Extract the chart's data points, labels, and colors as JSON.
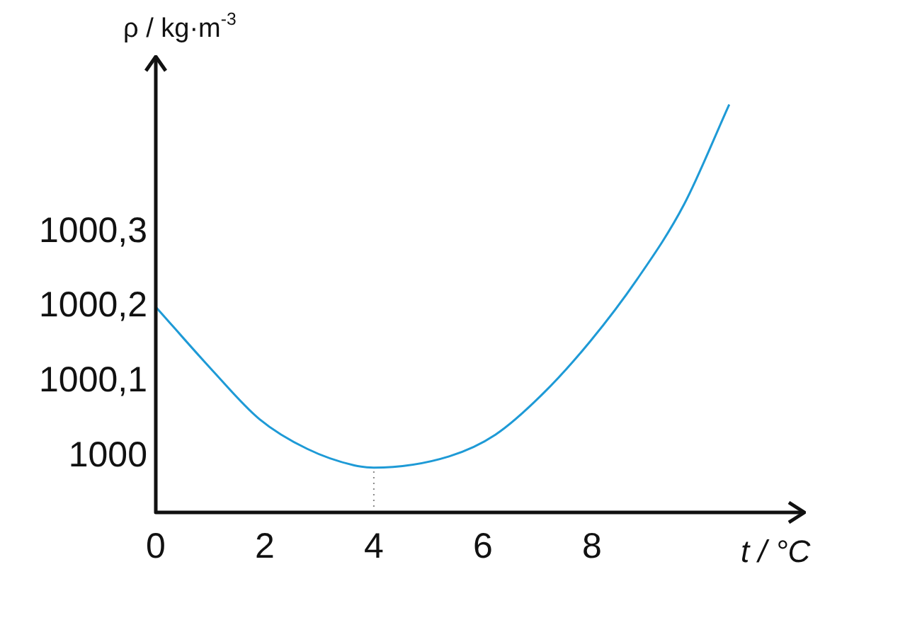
{
  "chart_data": {
    "type": "line",
    "xlabel": "t / °C",
    "ylabel": "ρ / kg·m$^{-3}$",
    "x": [
      0,
      1.04,
      1.9,
      2.78,
      3.64,
      4,
      5.38,
      6.23,
      7.09,
      7.97,
      8.83,
      9.69,
      10.52
    ],
    "series": [
      {
        "color": "#1e9ad6",
        "values": [
          1000.2,
          1000.115,
          1000.05,
          1000.01,
          999.988,
          999.985,
          1000.0,
          1000.029,
          1000.083,
          1000.154,
          1000.237,
          1000.337,
          1000.471
        ]
      }
    ],
    "xlim": [
      0,
      11.9
    ],
    "xticks": [
      0,
      2,
      4,
      6,
      8
    ],
    "ylim": [
      999.925,
      1000.535
    ],
    "yticks": [
      1000,
      {
        "value": 1000.1,
        "label": "1000,1"
      },
      {
        "value": 1000.2,
        "label": "1000,2"
      },
      {
        "value": 1000.3,
        "label": "1000,3"
      }
    ],
    "ref_lines": [
      {
        "axis": "x",
        "value": 4,
        "line_style": "dotted",
        "color": "#888888"
      }
    ],
    "grid": false,
    "legend": false,
    "marker": "none",
    "line_style": "solid"
  }
}
